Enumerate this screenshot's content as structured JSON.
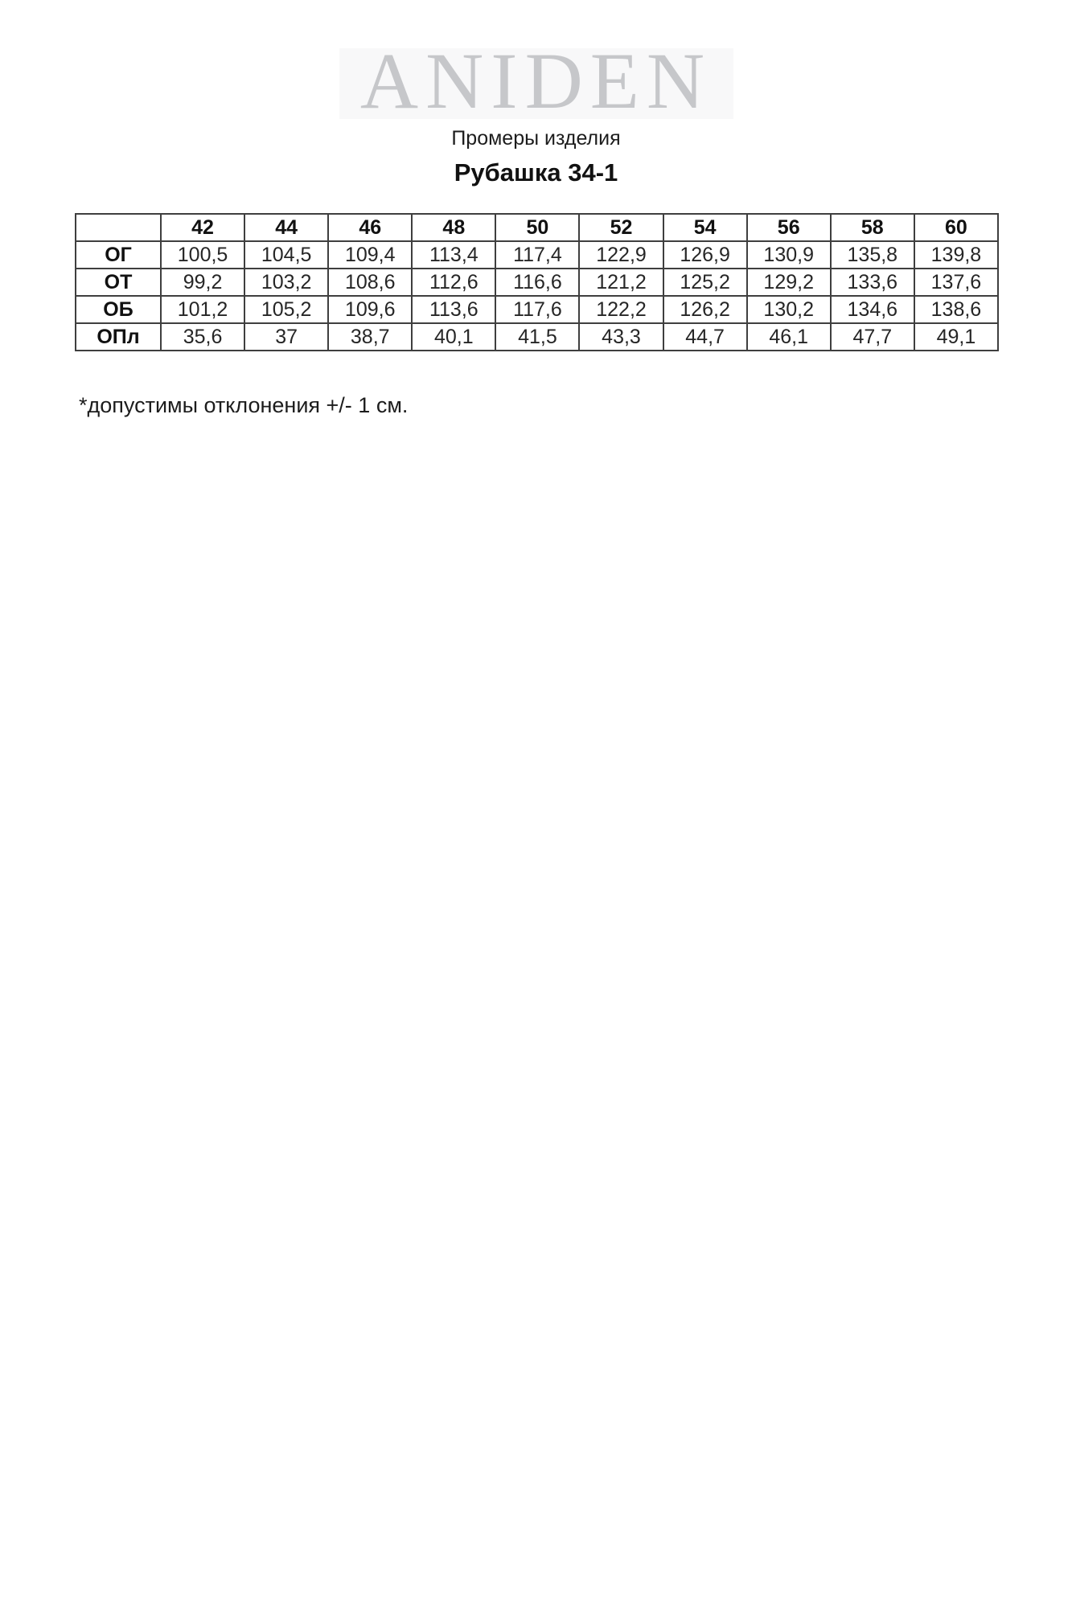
{
  "brand": {
    "logo_text": "ANIDEN",
    "logo_color": "#c6c7ca",
    "logo_bg": "#f8f8f9"
  },
  "header": {
    "subtitle": "Промеры изделия",
    "title": "Рубашка 34-1"
  },
  "table": {
    "corner_label": "",
    "size_headers": [
      "42",
      "44",
      "46",
      "48",
      "50",
      "52",
      "54",
      "56",
      "58",
      "60"
    ],
    "rows": [
      {
        "label": "ОГ",
        "values": [
          "100,5",
          "104,5",
          "109,4",
          "113,4",
          "117,4",
          "122,9",
          "126,9",
          "130,9",
          "135,8",
          "139,8"
        ]
      },
      {
        "label": "ОТ",
        "values": [
          "99,2",
          "103,2",
          "108,6",
          "112,6",
          "116,6",
          "121,2",
          "125,2",
          "129,2",
          "133,6",
          "137,6"
        ]
      },
      {
        "label": "ОБ",
        "values": [
          "101,2",
          "105,2",
          "109,6",
          "113,6",
          "117,6",
          "122,2",
          "126,2",
          "130,2",
          "134,6",
          "138,6"
        ]
      },
      {
        "label": "ОПл",
        "values": [
          "35,6",
          "37",
          "38,7",
          "40,1",
          "41,5",
          "43,3",
          "44,7",
          "46,1",
          "47,7",
          "49,1"
        ]
      }
    ]
  },
  "footnote": "*допустимы отклонения +/- 1 см.",
  "colors": {
    "text": "#1c1c1c",
    "table_border": "#3f3f3f",
    "background": "#ffffff"
  }
}
